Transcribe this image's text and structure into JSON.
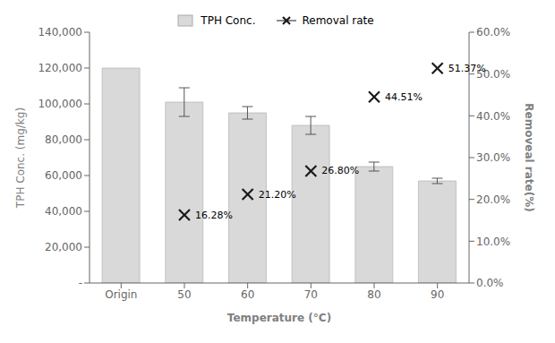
{
  "chart_data": {
    "type": "bar",
    "categories": [
      "Origin",
      "50",
      "60",
      "70",
      "80",
      "90"
    ],
    "xlabel": "Temperature (°C)",
    "ylabel": "TPH Conc. (mg/kg)",
    "y2label": "Removeal rate(%)",
    "series": [
      {
        "name": "TPH Conc.",
        "type": "bar",
        "color": "#d9d9d9",
        "values": [
          120000,
          101000,
          95000,
          88000,
          65000,
          57000
        ],
        "errors": [
          null,
          8000,
          3500,
          5000,
          2500,
          1500
        ]
      },
      {
        "name": "Removal rate",
        "type": "scatter",
        "axis": "y2",
        "marker": "x",
        "color": "#1a1a1a",
        "data_labels": true,
        "values": [
          null,
          16.28,
          21.2,
          26.8,
          44.51,
          51.37
        ],
        "value_labels": [
          null,
          "16.28%",
          "21.20%",
          "26.80%",
          "44.51%",
          "51.37%"
        ]
      }
    ],
    "ylim": [
      0,
      140000
    ],
    "yticks": [
      {
        "value": 0,
        "label": "-"
      },
      {
        "value": 20000,
        "label": "20,000"
      },
      {
        "value": 40000,
        "label": "40,000"
      },
      {
        "value": 60000,
        "label": "60,000"
      },
      {
        "value": 80000,
        "label": "80,000"
      },
      {
        "value": 100000,
        "label": "100,000"
      },
      {
        "value": 120000,
        "label": "120,000"
      },
      {
        "value": 140000,
        "label": "140,000"
      }
    ],
    "y2lim": [
      0,
      60.0
    ],
    "y2ticks": [
      {
        "value": 0,
        "label": "0.0%"
      },
      {
        "value": 10,
        "label": "10.0%"
      },
      {
        "value": 20,
        "label": "20.0%"
      },
      {
        "value": 30,
        "label": "30.0%"
      },
      {
        "value": 40,
        "label": "40.0%"
      },
      {
        "value": 50,
        "label": "50.0%"
      },
      {
        "value": 60,
        "label": "60.0%"
      }
    ],
    "grid": false,
    "legend": "top"
  }
}
